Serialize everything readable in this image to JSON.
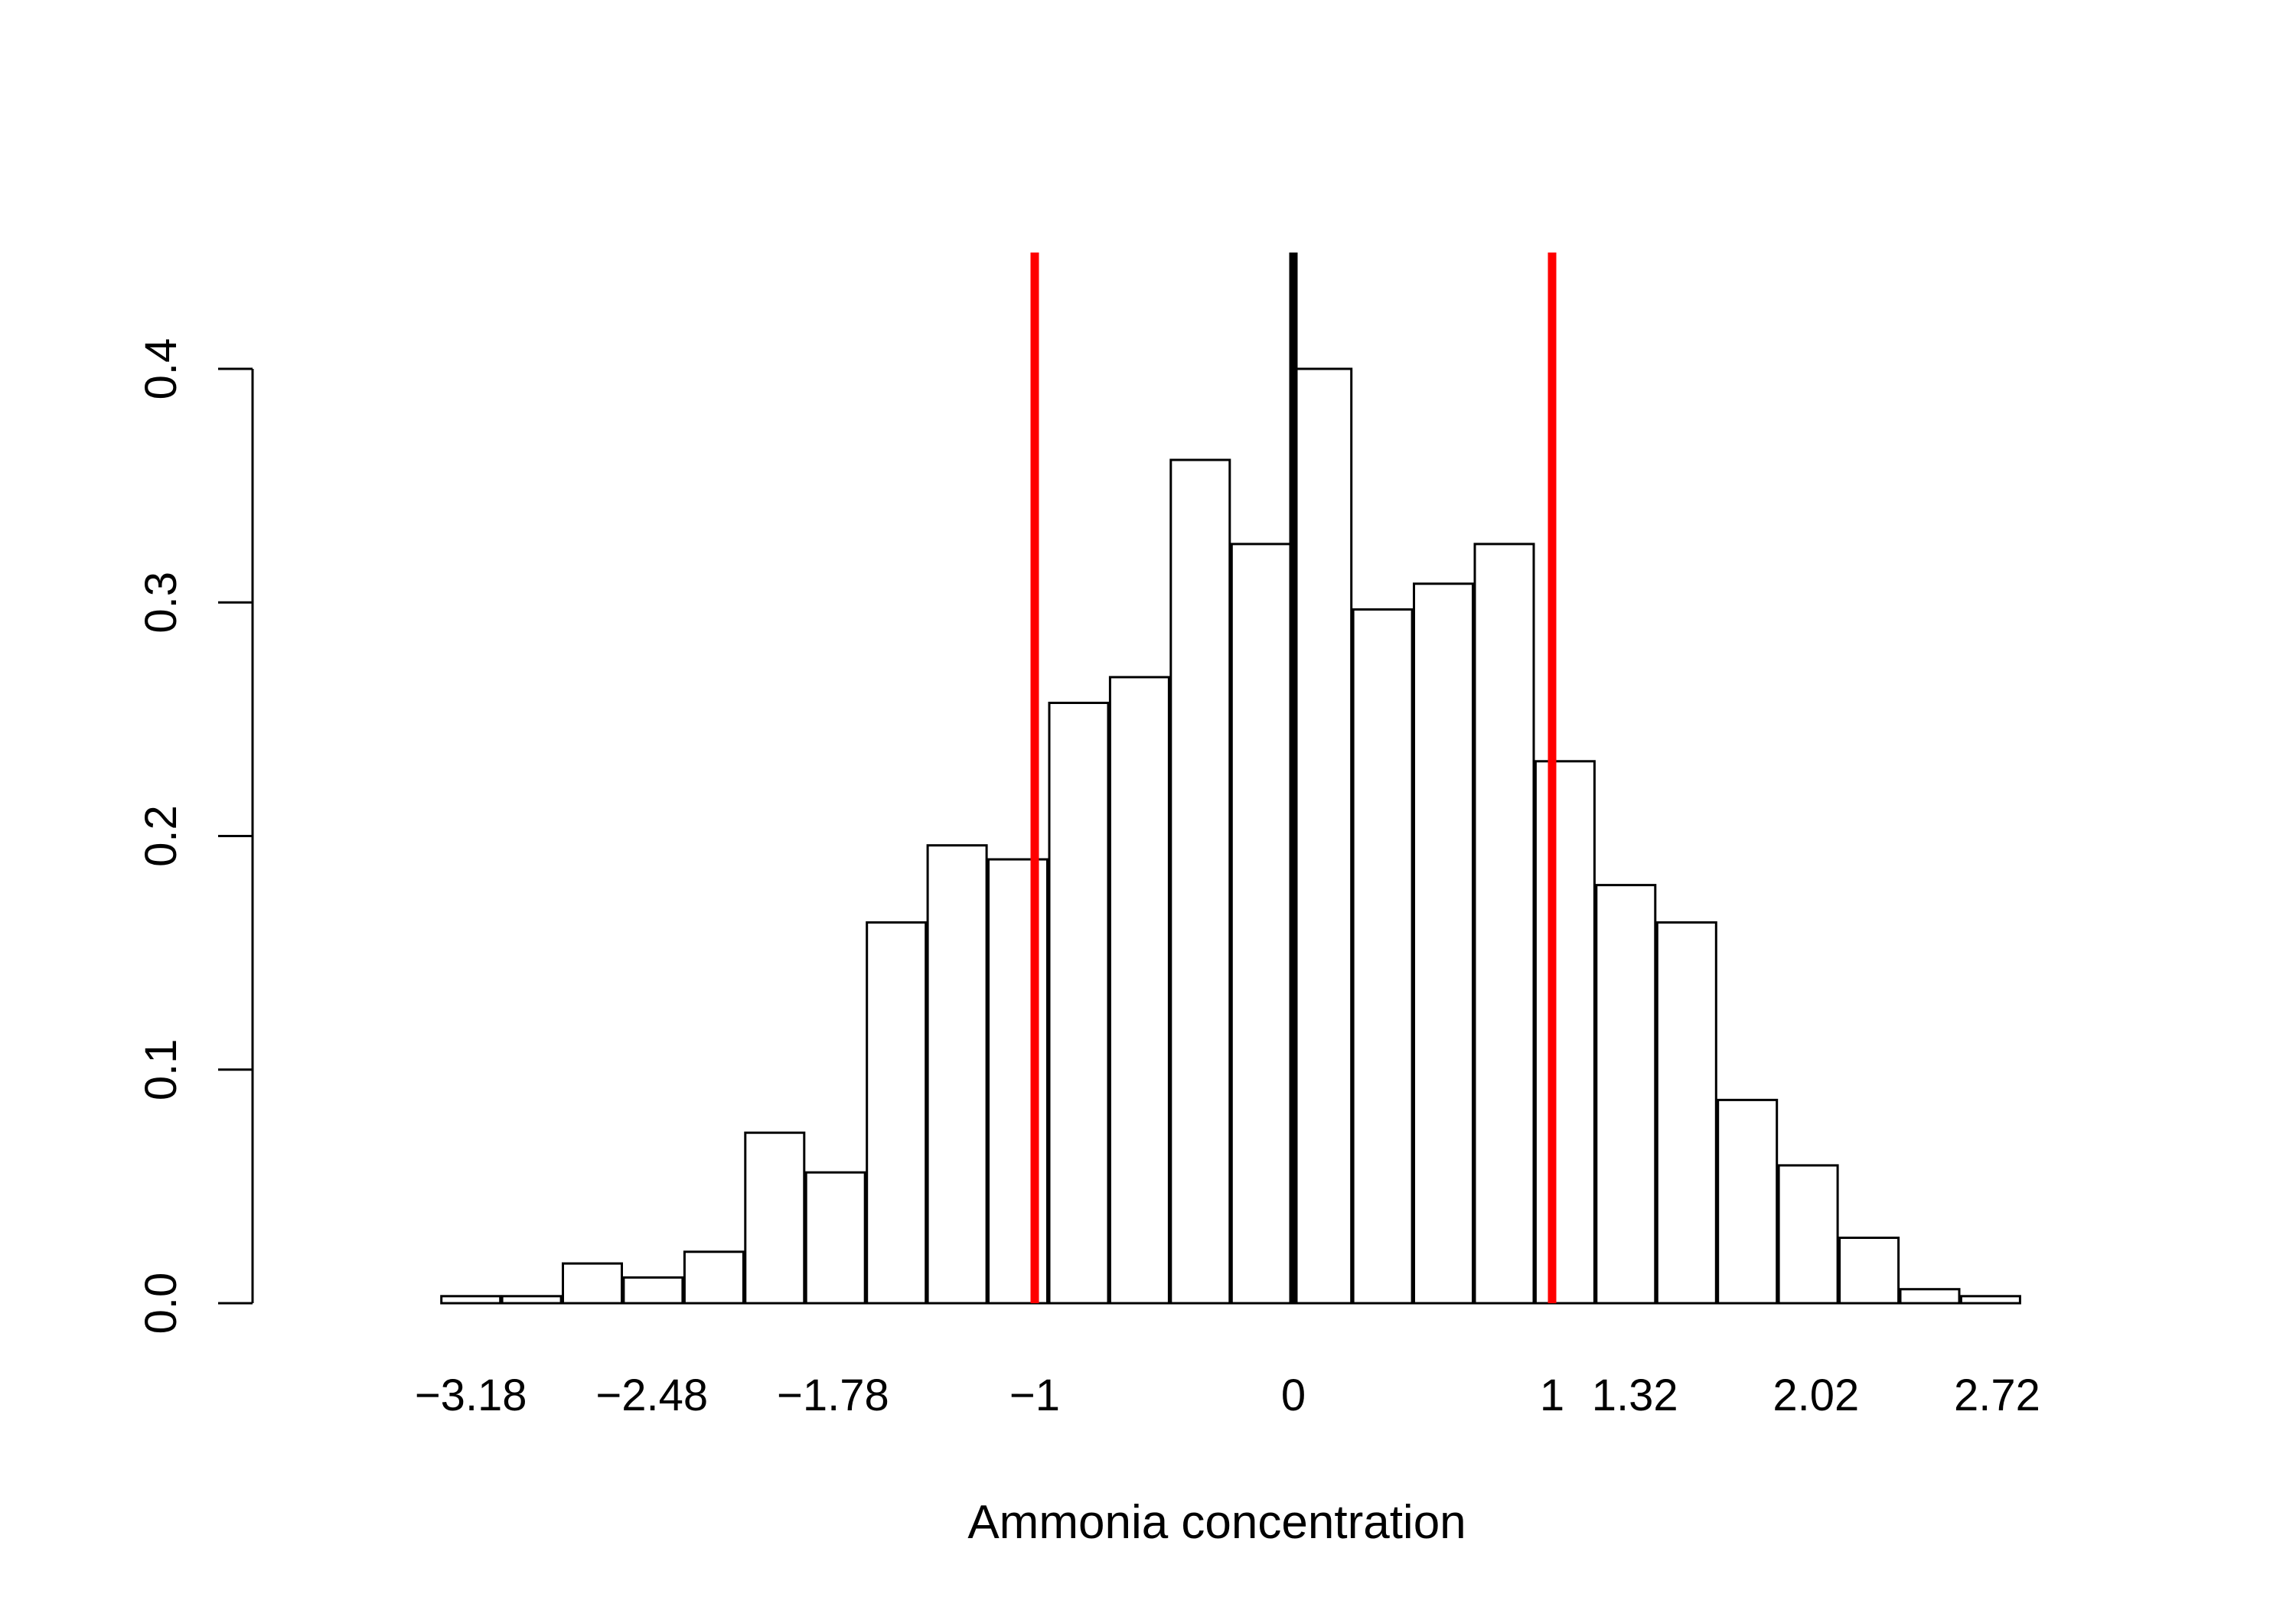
{
  "chart_data": {
    "type": "bar",
    "xlabel": "Ammonia concentration",
    "ylabel": "",
    "ylim": [
      0,
      0.4
    ],
    "y_ticks": [
      "0.0",
      "0.1",
      "0.2",
      "0.3",
      "0.4"
    ],
    "x_tick_labels": [
      "−3.18",
      "−2.48",
      "−1.78",
      "−1",
      "0",
      "1",
      "1.32",
      "2.02",
      "2.72"
    ],
    "x_tick_values": [
      -3.18,
      -2.48,
      -1.78,
      -1,
      0,
      1,
      1.32,
      2.02,
      2.72
    ],
    "bins": [
      {
        "x": -3.18,
        "value": 0.003
      },
      {
        "x": -2.945,
        "value": 0.003
      },
      {
        "x": -2.71,
        "value": 0.017
      },
      {
        "x": -2.475,
        "value": 0.011
      },
      {
        "x": -2.24,
        "value": 0.022
      },
      {
        "x": -2.005,
        "value": 0.073
      },
      {
        "x": -1.77,
        "value": 0.056
      },
      {
        "x": -1.535,
        "value": 0.163
      },
      {
        "x": -1.3,
        "value": 0.196
      },
      {
        "x": -1.065,
        "value": 0.19
      },
      {
        "x": -0.83,
        "value": 0.257
      },
      {
        "x": -0.595,
        "value": 0.268
      },
      {
        "x": -0.36,
        "value": 0.361
      },
      {
        "x": -0.125,
        "value": 0.325
      },
      {
        "x": 0.11,
        "value": 0.4
      },
      {
        "x": 0.345,
        "value": 0.297
      },
      {
        "x": 0.58,
        "value": 0.308
      },
      {
        "x": 0.815,
        "value": 0.325
      },
      {
        "x": 1.05,
        "value": 0.232
      },
      {
        "x": 1.285,
        "value": 0.179
      },
      {
        "x": 1.52,
        "value": 0.163
      },
      {
        "x": 1.755,
        "value": 0.087
      },
      {
        "x": 1.99,
        "value": 0.059
      },
      {
        "x": 2.225,
        "value": 0.028
      },
      {
        "x": 2.46,
        "value": 0.006
      },
      {
        "x": 2.695,
        "value": 0.003
      }
    ],
    "reference_lines": [
      {
        "x": -1,
        "color": "#ff0000"
      },
      {
        "x": 0,
        "color": "#000000"
      },
      {
        "x": 1,
        "color": "#ff0000"
      }
    ],
    "bar_fill": "#ffffff",
    "bar_stroke": "#000000",
    "grid": false,
    "legend": "none"
  }
}
